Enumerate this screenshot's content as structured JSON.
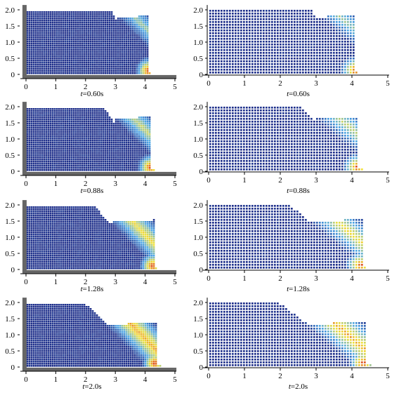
{
  "figure": {
    "y_ticks": [
      "0",
      "0.5",
      "1.0",
      "1.5",
      "2.0"
    ],
    "x_ticks": [
      "0",
      "1",
      "2",
      "3",
      "4",
      "5"
    ],
    "rows": [
      {
        "time_label": "t=0.60s"
      },
      {
        "time_label": "t=0.88s"
      },
      {
        "time_label": "t=1.28s"
      },
      {
        "time_label": "t=2.0s"
      }
    ],
    "columns": [
      {
        "style": "dense-particles-with-boundary"
      },
      {
        "style": "sparse-particles"
      }
    ],
    "colors": {
      "background": "#ffffff",
      "particle_base": "#1f2f8a",
      "particle_mid": "#4ea8e8",
      "particle_warm": "#f2e23a",
      "particle_hot": "#d8281c",
      "boundary": "#666666",
      "axis": "#000000"
    },
    "progress": [
      0.6,
      0.88,
      1.28,
      2.0
    ]
  }
}
